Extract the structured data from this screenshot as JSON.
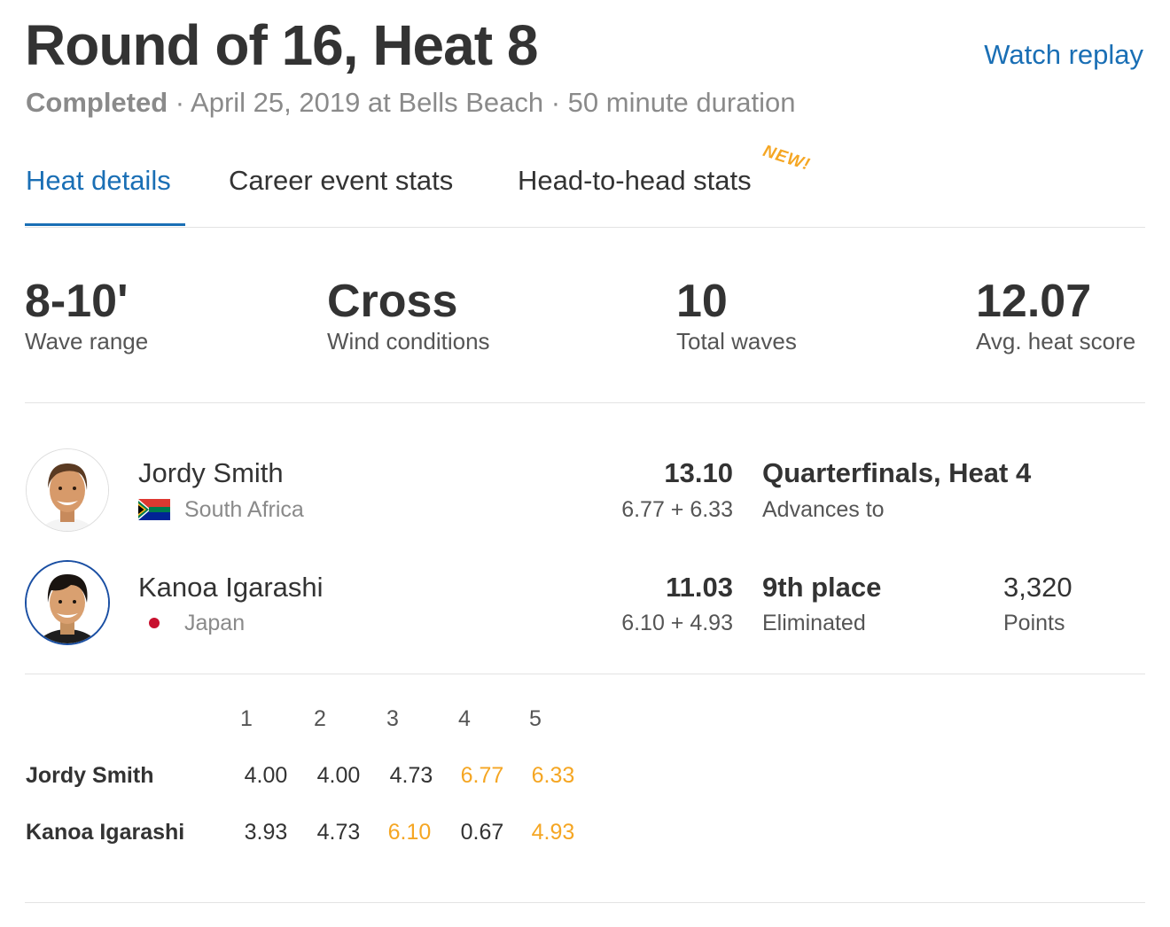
{
  "header": {
    "title": "Round of 16, Heat 8",
    "watch_replay": "Watch replay",
    "status": "Completed",
    "details": " · April 25, 2019 at Bells Beach · 50 minute duration"
  },
  "tabs": [
    {
      "label": "Heat details",
      "active": true
    },
    {
      "label": "Career event stats",
      "active": false
    },
    {
      "label": "Head-to-head stats",
      "active": false,
      "badge": "NEW!"
    }
  ],
  "stats": [
    {
      "value": "8-10'",
      "label": "Wave range"
    },
    {
      "value": "Cross",
      "label": "Wind conditions"
    },
    {
      "value": "10",
      "label": "Total waves"
    },
    {
      "value": "12.07",
      "label": "Avg. heat score"
    }
  ],
  "surfers": [
    {
      "name": "Jordy Smith",
      "country": "South Africa",
      "flag": "south-africa-flag-icon",
      "total": "13.10",
      "best_waves": "6.77 + 6.33",
      "result": "Quarterfinals, Heat 4",
      "result_sub": "Advances to"
    },
    {
      "name": "Kanoa Igarashi",
      "country": "Japan",
      "flag": "japan-flag-icon",
      "total": "11.03",
      "best_waves": "6.10 + 4.93",
      "result": "9th place",
      "result_sub": "Eliminated",
      "points": "3,320",
      "points_label": "Points"
    }
  ],
  "wave_table": {
    "wave_numbers": [
      "1",
      "2",
      "3",
      "4",
      "5"
    ],
    "rows": [
      {
        "name": "Jordy Smith",
        "scores": [
          "4.00",
          "4.00",
          "4.73",
          "6.77",
          "6.33"
        ],
        "best": [
          false,
          false,
          false,
          true,
          true
        ]
      },
      {
        "name": "Kanoa Igarashi",
        "scores": [
          "3.93",
          "4.73",
          "6.10",
          "0.67",
          "4.93"
        ],
        "best": [
          false,
          false,
          true,
          false,
          true
        ]
      }
    ]
  },
  "colors": {
    "accent_blue": "#1a6fb5",
    "highlight_orange": "#f5a623",
    "text_dark": "#333333",
    "text_muted": "#8a8a8a"
  }
}
